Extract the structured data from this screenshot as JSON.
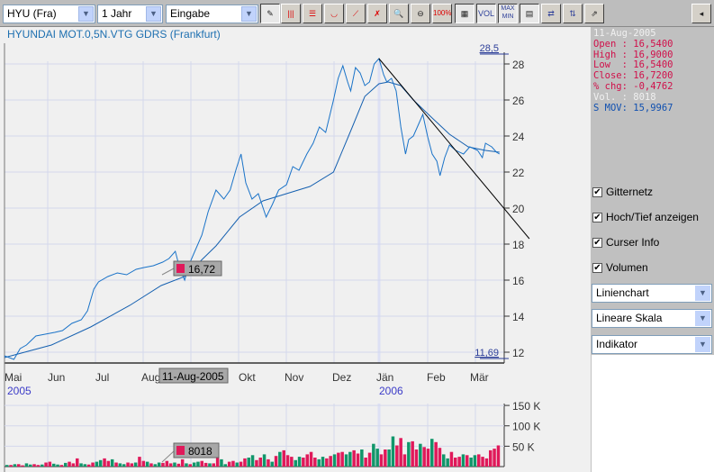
{
  "toolbar": {
    "symbol": "HYU (Fra)",
    "period": "1 Jahr",
    "mode": "Eingabe",
    "vol_label": "VOL",
    "maxmin_label": "MAX\nMIN",
    "zoom100_label": "100%"
  },
  "title": "HYUNDAI MOT.0,5N.VTG GDRS (Frankfurt)",
  "info": {
    "date": "11-Aug-2005",
    "open": "Open : 16,5400",
    "high": "High : 16,9000",
    "low": "Low  : 16,5400",
    "close": "Close: 16,7200",
    "chg": "% chg: -0,4762",
    "vol": "Vol. : 8018",
    "smov": "S MOV: 15,9967"
  },
  "options": {
    "grid": "Gitternetz",
    "hilo": "Hoch/Tief anzeigen",
    "cursor": "Curser Info",
    "volume": "Volumen",
    "charttype": "Linienchart",
    "scale": "Lineare Skala",
    "indicator": "Indikator"
  },
  "colors": {
    "price": "#1a73c8",
    "up": "#10966a",
    "down": "#e0195a",
    "accent": "#3c3cc8"
  },
  "chart_data": {
    "type": "line",
    "price_ylim": [
      11.5,
      29
    ],
    "price_ticks": [
      "12",
      "14",
      "16",
      "18",
      "20",
      "22",
      "24",
      "26",
      "28"
    ],
    "max_label": "28,5",
    "min_label": "11,69",
    "months": [
      "Mai",
      "Jun",
      "Jul",
      "Aug",
      "Okt",
      "Nov",
      "Dez",
      "Jän",
      "Feb",
      "Mär"
    ],
    "years": [
      "2005",
      "2006"
    ],
    "cursor_date": "11-Aug-2005",
    "cursor_price": "16,72",
    "cursor_volume": "8018",
    "price": [
      [
        0,
        11.8
      ],
      [
        6,
        11.6
      ],
      [
        10,
        12.2
      ],
      [
        14,
        12.4
      ],
      [
        20,
        12.9
      ],
      [
        26,
        13
      ],
      [
        32,
        13.1
      ],
      [
        37,
        13.2
      ],
      [
        43,
        13.6
      ],
      [
        49,
        13.8
      ],
      [
        53,
        14.3
      ],
      [
        57,
        15.5
      ],
      [
        60,
        15.9
      ],
      [
        66,
        16.2
      ],
      [
        72,
        16.4
      ],
      [
        78,
        16.3
      ],
      [
        84,
        16.6
      ],
      [
        89,
        16.7
      ],
      [
        95,
        16.8
      ],
      [
        101,
        17
      ],
      [
        105,
        17.2
      ],
      [
        109,
        17.6
      ],
      [
        112,
        16.6
      ],
      [
        115,
        16
      ],
      [
        118,
        16.9
      ],
      [
        121,
        17.5
      ],
      [
        126,
        18.5
      ],
      [
        130,
        19.8
      ],
      [
        135,
        21
      ],
      [
        140,
        20.5
      ],
      [
        144,
        21
      ],
      [
        148,
        22.2
      ],
      [
        151,
        23
      ],
      [
        154,
        21.4
      ],
      [
        158,
        20.5
      ],
      [
        162,
        20.8
      ],
      [
        167,
        19.5
      ],
      [
        171,
        20.2
      ],
      [
        175,
        21
      ],
      [
        180,
        21.3
      ],
      [
        184,
        22.3
      ],
      [
        188,
        22.1
      ],
      [
        193,
        23
      ],
      [
        197,
        23.6
      ],
      [
        201,
        24.5
      ],
      [
        205,
        24.2
      ],
      [
        210,
        26
      ],
      [
        213,
        27.2
      ],
      [
        216,
        27.9
      ],
      [
        219,
        27
      ],
      [
        221,
        26.5
      ],
      [
        224,
        27.8
      ],
      [
        227,
        27.5
      ],
      [
        230,
        26.8
      ],
      [
        233,
        27
      ],
      [
        236,
        28
      ],
      [
        239,
        28.3
      ],
      [
        242,
        27.4
      ],
      [
        244,
        27
      ],
      [
        247,
        27.2
      ],
      [
        250,
        26.5
      ],
      [
        253,
        24.5
      ],
      [
        256,
        23
      ],
      [
        258,
        23.8
      ],
      [
        261,
        24
      ],
      [
        264,
        24.6
      ],
      [
        267,
        25.2
      ],
      [
        270,
        24
      ],
      [
        273,
        23
      ],
      [
        276,
        22.6
      ],
      [
        278,
        21.8
      ],
      [
        281,
        22.8
      ],
      [
        284,
        23.5
      ],
      [
        288,
        23.2
      ],
      [
        293,
        23
      ],
      [
        297,
        23.4
      ],
      [
        302,
        23.2
      ],
      [
        305,
        22.8
      ],
      [
        307,
        23.6
      ],
      [
        311,
        23.4
      ],
      [
        314,
        23.1
      ],
      [
        316,
        23
      ]
    ],
    "sma": [
      [
        0,
        11.7
      ],
      [
        30,
        12.4
      ],
      [
        55,
        13.4
      ],
      [
        80,
        14.6
      ],
      [
        100,
        15.7
      ],
      [
        115,
        16.2
      ],
      [
        135,
        17.9
      ],
      [
        150,
        19.5
      ],
      [
        165,
        20.4
      ],
      [
        180,
        20.8
      ],
      [
        195,
        21.2
      ],
      [
        210,
        22
      ],
      [
        222,
        24.5
      ],
      [
        230,
        26.2
      ],
      [
        239,
        26.9
      ],
      [
        245,
        27
      ],
      [
        253,
        26.8
      ],
      [
        261,
        26
      ],
      [
        273,
        25
      ],
      [
        284,
        24.1
      ],
      [
        296,
        23.4
      ],
      [
        307,
        23.2
      ],
      [
        316,
        23.1
      ]
    ],
    "trendline": [
      [
        239,
        28.3
      ],
      [
        335,
        18.3
      ]
    ],
    "volume_ticks": [
      "50 K",
      "100 K",
      "150 K"
    ],
    "volume_k": [
      4,
      4,
      6,
      6,
      3,
      8,
      5,
      6,
      4,
      5,
      10,
      12,
      7,
      5,
      4,
      9,
      12,
      8,
      20,
      8,
      6,
      5,
      10,
      12,
      16,
      20,
      14,
      18,
      10,
      8,
      6,
      10,
      8,
      10,
      24,
      14,
      12,
      8,
      6,
      10,
      9,
      14,
      8,
      10,
      7,
      18,
      8,
      6,
      10,
      12,
      14,
      9,
      8,
      8,
      40,
      18,
      6,
      12,
      14,
      10,
      12,
      20,
      22,
      28,
      16,
      22,
      30,
      18,
      12,
      26,
      36,
      40,
      28,
      24,
      16,
      24,
      22,
      30,
      36,
      22,
      18,
      24,
      20,
      26,
      30,
      34,
      36,
      30,
      36,
      40,
      32,
      42,
      22,
      34,
      56,
      44,
      30,
      42,
      42,
      74,
      52,
      70,
      30,
      60,
      62,
      42,
      56,
      48,
      44,
      68,
      60,
      46,
      30,
      20,
      36,
      22,
      24,
      30,
      28,
      22,
      28,
      30,
      24,
      20,
      40,
      44,
      52
    ],
    "volume_dir": "ududduuddudduududdduudduudduduuddudduduudddudduduuddudduuddudduuddudududdduudddduuddudduuddudduudduudddudduddudduuddduduudddd"
  }
}
